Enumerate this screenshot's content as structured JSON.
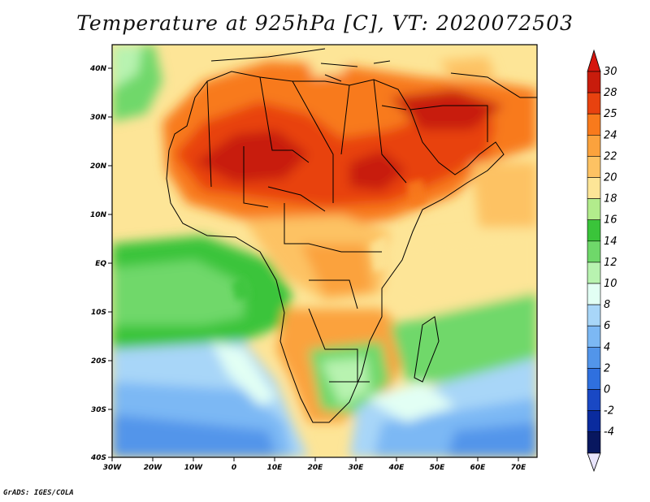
{
  "title": "Temperature at 925hPa [C], VT: 2020072503",
  "credit": "GrADS: IGES/COLA",
  "map": {
    "lon_labels": [
      "30W",
      "20W",
      "10W",
      "0",
      "10E",
      "20E",
      "30E",
      "40E",
      "50E",
      "60E",
      "70E"
    ],
    "lat_labels": [
      "40N",
      "30N",
      "20N",
      "10N",
      "EQ",
      "10S",
      "20S",
      "30S",
      "40S"
    ]
  },
  "colorbar": {
    "labels": [
      "30",
      "28",
      "25",
      "24",
      "22",
      "20",
      "18",
      "16",
      "14",
      "12",
      "10",
      "8",
      "6",
      "4",
      "2",
      "0",
      "-2",
      "-4"
    ],
    "colors": [
      "#c81c0c",
      "#e8420f",
      "#f87a1c",
      "#fba23d",
      "#fdc263",
      "#fde597",
      "#b2ec8c",
      "#3ac43a",
      "#6fd86a",
      "#b8f3b0",
      "#e2fff4",
      "#a8d6f8",
      "#7cb8f4",
      "#5295ea",
      "#2f70df",
      "#1948c4",
      "#0a2b9e",
      "#08175f"
    ],
    "top_color": "#d5160e",
    "bottom_color": "#e8e4fb"
  }
}
